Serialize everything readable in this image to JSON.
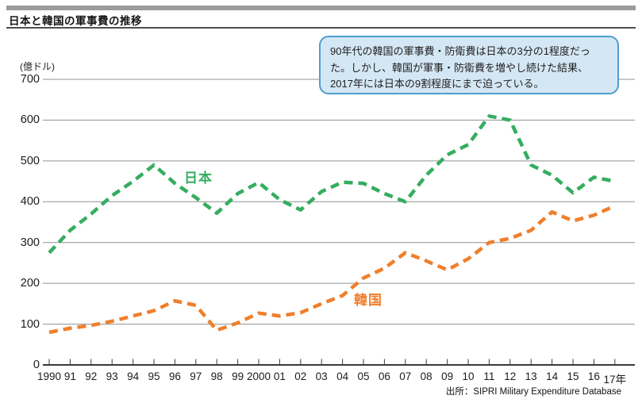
{
  "header": {
    "title": "日本と韓国の軍事費の推移"
  },
  "callout": {
    "text": "90年代の韓国の軍事費・防衛費は日本の3分の1程度だった。しかし、韓国が軍事・防衛費を増やし続けた結果、2017年には日本の9割程度にまで迫っている。"
  },
  "source": "出所：SIPRI Military Expenditure Database",
  "colors": {
    "japan_line": "#35ad60",
    "korea_line": "#ef7f2c",
    "gridline": "#909090",
    "axis": "#3a3a3a",
    "callout_bg": "#d4e7f4",
    "callout_border": "#4f9ecd",
    "header_bar": "#9c9c9c",
    "header_rule": "#4f4f4f"
  },
  "chart_data": {
    "type": "line",
    "title": "日本と韓国の軍事費の推移",
    "unit_label": "(億ドル)",
    "xlabel": "",
    "ylabel": "(億ドル)",
    "ylim": [
      0,
      700
    ],
    "yticks": [
      0,
      100,
      200,
      300,
      400,
      500,
      600,
      700
    ],
    "grid": true,
    "legend_position": "inline-labels",
    "line_style": "dashed",
    "categories": [
      "1990",
      "91",
      "92",
      "93",
      "94",
      "95",
      "96",
      "97",
      "98",
      "99",
      "2000",
      "01",
      "02",
      "03",
      "04",
      "05",
      "06",
      "07",
      "08",
      "09",
      "10",
      "11",
      "12",
      "13",
      "14",
      "15",
      "16",
      "17年"
    ],
    "series": [
      {
        "name": "日本",
        "color": "#35ad60",
        "values": [
          275,
          330,
          370,
          415,
          450,
          490,
          445,
          410,
          372,
          420,
          447,
          405,
          380,
          425,
          448,
          445,
          420,
          400,
          465,
          515,
          540,
          610,
          600,
          490,
          465,
          422,
          460,
          450
        ]
      },
      {
        "name": "韓国",
        "color": "#ef7f2c",
        "values": [
          80,
          90,
          97,
          107,
          120,
          133,
          157,
          146,
          85,
          103,
          127,
          120,
          128,
          150,
          170,
          213,
          237,
          275,
          255,
          233,
          260,
          300,
          310,
          330,
          375,
          353,
          367,
          390
        ]
      }
    ]
  }
}
